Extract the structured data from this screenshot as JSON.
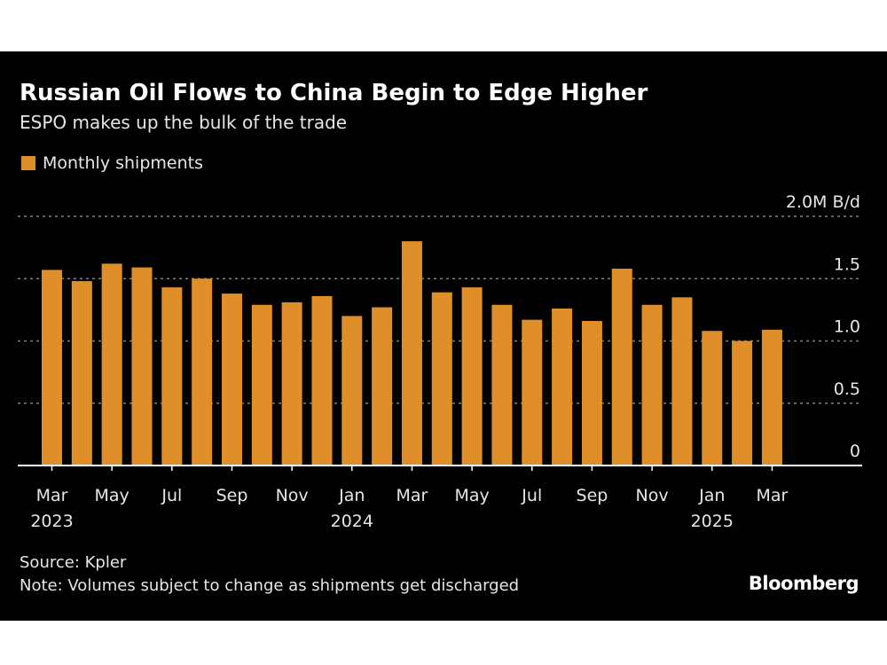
{
  "title": "Russian Oil Flows to China Begin to Edge Higher",
  "subtitle": "ESPO makes up the bulk of the trade",
  "source": "Source: Kpler",
  "note": "Note: Volumes subject to change as shipments get discharged",
  "logo": "Bloomberg",
  "colors": {
    "bar": "#e08e2a",
    "background": "#000000",
    "grid": "#808080"
  },
  "chart_data": {
    "type": "bar",
    "title": "Russian Oil Flows to China Begin to Edge Higher",
    "subtitle": "ESPO makes up the bulk of the trade",
    "legend": {
      "placement": "top-left",
      "entries": [
        "Monthly shipments"
      ]
    },
    "ylabel_unit": "M B/d",
    "ylim": [
      0,
      2.0
    ],
    "yticks": [
      {
        "v": 0,
        "label": "0"
      },
      {
        "v": 0.5,
        "label": "0.5"
      },
      {
        "v": 1.0,
        "label": "1.0"
      },
      {
        "v": 1.5,
        "label": "1.5"
      },
      {
        "v": 2.0,
        "label": "2.0M B/d"
      }
    ],
    "grid": true,
    "y_axis_side": "right",
    "categories": [
      "2023-03",
      "2023-04",
      "2023-05",
      "2023-06",
      "2023-07",
      "2023-08",
      "2023-09",
      "2023-10",
      "2023-11",
      "2023-12",
      "2024-01",
      "2024-02",
      "2024-03",
      "2024-04",
      "2024-05",
      "2024-06",
      "2024-07",
      "2024-08",
      "2024-09",
      "2024-10",
      "2024-11",
      "2024-12",
      "2025-01",
      "2025-02",
      "2025-03"
    ],
    "xtick_labels": [
      {
        "i": 0,
        "label": "Mar",
        "year": "2023"
      },
      {
        "i": 2,
        "label": "May"
      },
      {
        "i": 4,
        "label": "Jul"
      },
      {
        "i": 6,
        "label": "Sep"
      },
      {
        "i": 8,
        "label": "Nov"
      },
      {
        "i": 10,
        "label": "Jan",
        "year": "2024"
      },
      {
        "i": 12,
        "label": "Mar"
      },
      {
        "i": 14,
        "label": "May"
      },
      {
        "i": 16,
        "label": "Jul"
      },
      {
        "i": 18,
        "label": "Sep"
      },
      {
        "i": 20,
        "label": "Nov"
      },
      {
        "i": 22,
        "label": "Jan",
        "year": "2025"
      },
      {
        "i": 24,
        "label": "Mar"
      }
    ],
    "series": [
      {
        "name": "Monthly shipments",
        "values": [
          1.57,
          1.48,
          1.62,
          1.59,
          1.43,
          1.5,
          1.38,
          1.29,
          1.31,
          1.36,
          1.2,
          1.27,
          1.8,
          1.39,
          1.43,
          1.29,
          1.17,
          1.26,
          1.16,
          1.58,
          1.29,
          1.35,
          1.08,
          1.0,
          1.09
        ]
      }
    ]
  }
}
